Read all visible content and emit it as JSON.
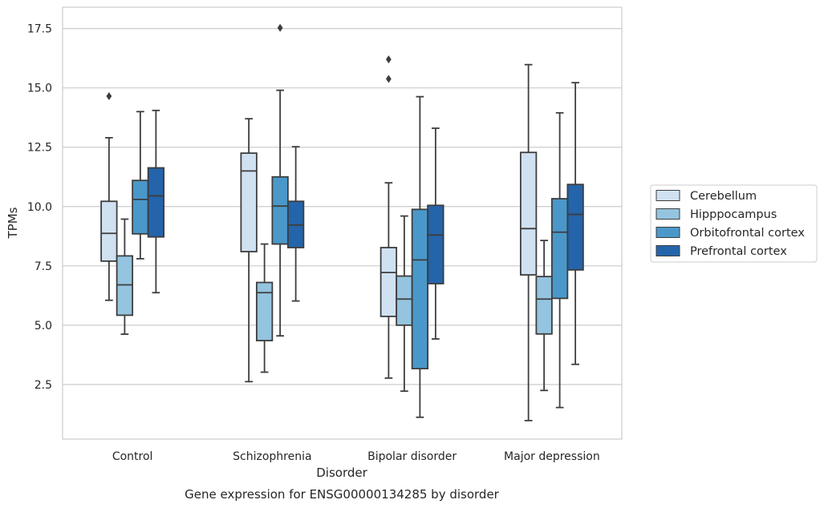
{
  "chart_data": {
    "type": "box",
    "caption": "Gene expression for ENSG00000134285 by disorder",
    "xlabel": "Disorder",
    "ylabel": "TPMs",
    "ylim": [
      0.2,
      18.4
    ],
    "yticks": [
      2.5,
      5.0,
      7.5,
      10.0,
      12.5,
      15.0,
      17.5
    ],
    "ytick_labels": [
      "2.5",
      "5.0",
      "7.5",
      "10.0",
      "12.5",
      "15.0",
      "17.5"
    ],
    "grid": "horizontal",
    "legend_placement": "right",
    "categories": [
      "Control",
      "Schizophrenia",
      "Bipolar disorder",
      "Major depression"
    ],
    "series": [
      {
        "name": "Cerebellum",
        "color": "#d0e1f2",
        "boxes": [
          {
            "whisker_low": 6.05,
            "q1": 7.7,
            "median": 8.87,
            "q3": 10.22,
            "whisker_high": 12.9,
            "outliers": [
              14.65
            ]
          },
          {
            "whisker_low": 2.62,
            "q1": 8.1,
            "median": 11.5,
            "q3": 12.25,
            "whisker_high": 13.7,
            "outliers": []
          },
          {
            "whisker_low": 2.77,
            "q1": 5.37,
            "median": 7.22,
            "q3": 8.27,
            "whisker_high": 11.0,
            "outliers": [
              15.38,
              16.2
            ]
          },
          {
            "whisker_low": 0.98,
            "q1": 7.12,
            "median": 9.07,
            "q3": 12.28,
            "whisker_high": 15.98,
            "outliers": []
          }
        ]
      },
      {
        "name": "Hipppocampus",
        "color": "#94c4df",
        "boxes": [
          {
            "whisker_low": 4.62,
            "q1": 5.42,
            "median": 6.7,
            "q3": 7.92,
            "whisker_high": 9.47,
            "outliers": []
          },
          {
            "whisker_low": 3.02,
            "q1": 4.35,
            "median": 6.37,
            "q3": 6.8,
            "whisker_high": 8.42,
            "outliers": []
          },
          {
            "whisker_low": 2.22,
            "q1": 5.0,
            "median": 6.1,
            "q3": 7.07,
            "whisker_high": 9.6,
            "outliers": []
          },
          {
            "whisker_low": 2.25,
            "q1": 4.63,
            "median": 6.1,
            "q3": 7.05,
            "whisker_high": 8.57,
            "outliers": []
          }
        ]
      },
      {
        "name": "Orbitofrontal cortex",
        "color": "#4a98c9",
        "boxes": [
          {
            "whisker_low": 7.8,
            "q1": 8.85,
            "median": 10.3,
            "q3": 11.1,
            "whisker_high": 14.0,
            "outliers": []
          },
          {
            "whisker_low": 4.55,
            "q1": 8.42,
            "median": 10.02,
            "q3": 11.25,
            "whisker_high": 14.9,
            "outliers": [
              17.53
            ]
          },
          {
            "whisker_low": 1.12,
            "q1": 3.17,
            "median": 7.75,
            "q3": 9.88,
            "whisker_high": 14.63,
            "outliers": []
          },
          {
            "whisker_low": 1.53,
            "q1": 6.13,
            "median": 8.92,
            "q3": 10.33,
            "whisker_high": 13.95,
            "outliers": []
          }
        ]
      },
      {
        "name": "Prefrontal cortex",
        "color": "#2464ab",
        "boxes": [
          {
            "whisker_low": 6.37,
            "q1": 8.72,
            "median": 10.45,
            "q3": 11.63,
            "whisker_high": 14.05,
            "outliers": []
          },
          {
            "whisker_low": 6.02,
            "q1": 8.27,
            "median": 9.22,
            "q3": 10.22,
            "whisker_high": 12.52,
            "outliers": []
          },
          {
            "whisker_low": 4.42,
            "q1": 6.75,
            "median": 8.8,
            "q3": 10.05,
            "whisker_high": 13.3,
            "outliers": []
          },
          {
            "whisker_low": 3.35,
            "q1": 7.33,
            "median": 9.67,
            "q3": 10.93,
            "whisker_high": 15.22,
            "outliers": []
          }
        ]
      }
    ]
  }
}
